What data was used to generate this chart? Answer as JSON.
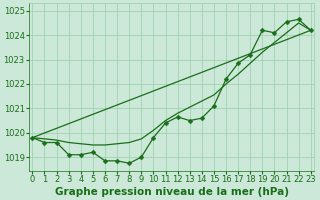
{
  "xlabel": "Graphe pression niveau de la mer (hPa)",
  "hours": [
    0,
    1,
    2,
    3,
    4,
    5,
    6,
    7,
    8,
    9,
    10,
    11,
    12,
    13,
    14,
    15,
    16,
    17,
    18,
    19,
    20,
    21,
    22,
    23
  ],
  "line_measured": [
    1019.8,
    1019.6,
    1019.6,
    1019.1,
    1019.1,
    1019.2,
    1018.85,
    1018.85,
    1018.75,
    1019.0,
    1019.8,
    1020.4,
    1020.65,
    1020.5,
    1020.6,
    1021.1,
    1022.2,
    1022.85,
    1023.2,
    1024.2,
    1024.1,
    1024.55,
    1024.65,
    1024.2
  ],
  "line_smooth": [
    1019.8,
    1019.75,
    1019.7,
    1019.6,
    1019.55,
    1019.5,
    1019.5,
    1019.55,
    1019.6,
    1019.75,
    1020.1,
    1020.5,
    1020.8,
    1021.05,
    1021.3,
    1021.55,
    1022.0,
    1022.4,
    1022.85,
    1023.3,
    1023.7,
    1024.1,
    1024.5,
    1024.2
  ],
  "trend_x": [
    0,
    23
  ],
  "trend_y": [
    1019.8,
    1024.2
  ],
  "ylim": [
    1018.45,
    1025.3
  ],
  "yticks": [
    1019,
    1020,
    1021,
    1022,
    1023,
    1024,
    1025
  ],
  "xlim": [
    -0.3,
    23.3
  ],
  "line_color": "#1a6e1a",
  "bg_color": "#cce8d8",
  "grid_color": "#99ccaa",
  "xlabel_fontsize": 7.5,
  "tick_fontsize": 6.0,
  "linewidth": 0.9,
  "markersize": 2.5
}
